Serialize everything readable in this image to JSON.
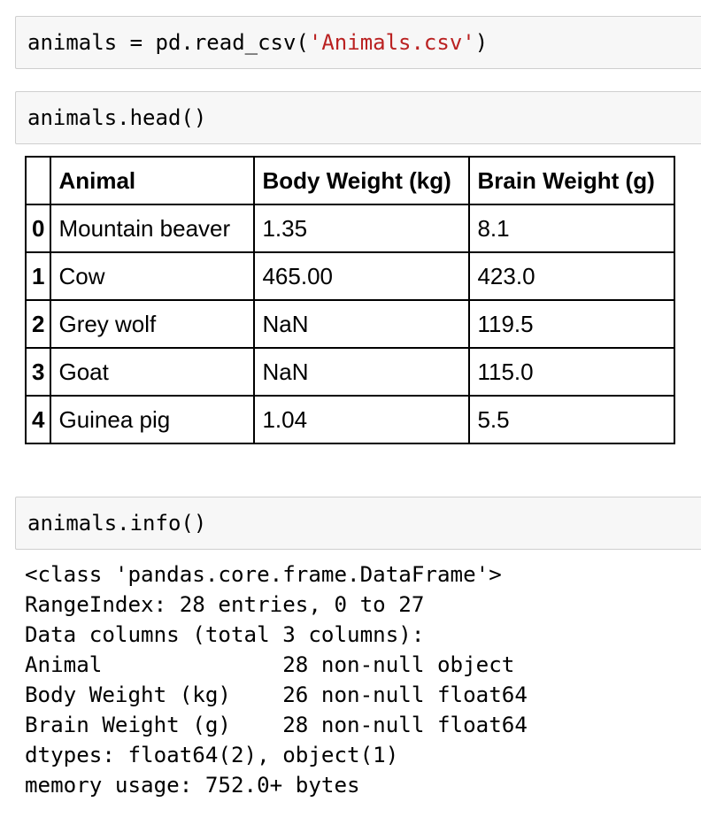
{
  "cells": {
    "read_csv": {
      "code_prefix": "animals = pd.read_csv(",
      "code_string": "'Animals.csv'",
      "code_suffix": ")"
    },
    "head": {
      "code": "animals.head()"
    },
    "info": {
      "code": "animals.info()"
    }
  },
  "dataframe": {
    "columns": [
      "",
      "Animal",
      "Body Weight (kg)",
      "Brain Weight (g)"
    ],
    "rows": [
      {
        "index": "0",
        "animal": "Mountain beaver",
        "body": "1.35",
        "brain": "8.1"
      },
      {
        "index": "1",
        "animal": "Cow",
        "body": "465.00",
        "brain": "423.0"
      },
      {
        "index": "2",
        "animal": "Grey wolf",
        "body": "NaN",
        "brain": "119.5"
      },
      {
        "index": "3",
        "animal": "Goat",
        "body": "NaN",
        "brain": "115.0"
      },
      {
        "index": "4",
        "animal": "Guinea pig",
        "body": "1.04",
        "brain": "5.5"
      }
    ]
  },
  "info_output": {
    "lines": [
      "<class 'pandas.core.frame.DataFrame'>",
      "RangeIndex: 28 entries, 0 to 27",
      "Data columns (total 3 columns):",
      "Animal              28 non-null object",
      "Body Weight (kg)    26 non-null float64",
      "Brain Weight (g)    28 non-null float64",
      "dtypes: float64(2), object(1)",
      "memory usage: 752.0+ bytes"
    ]
  },
  "colors": {
    "cell_background": "#f7f7f7",
    "cell_border": "#cfcfcf",
    "string_literal": "#ba2121"
  }
}
